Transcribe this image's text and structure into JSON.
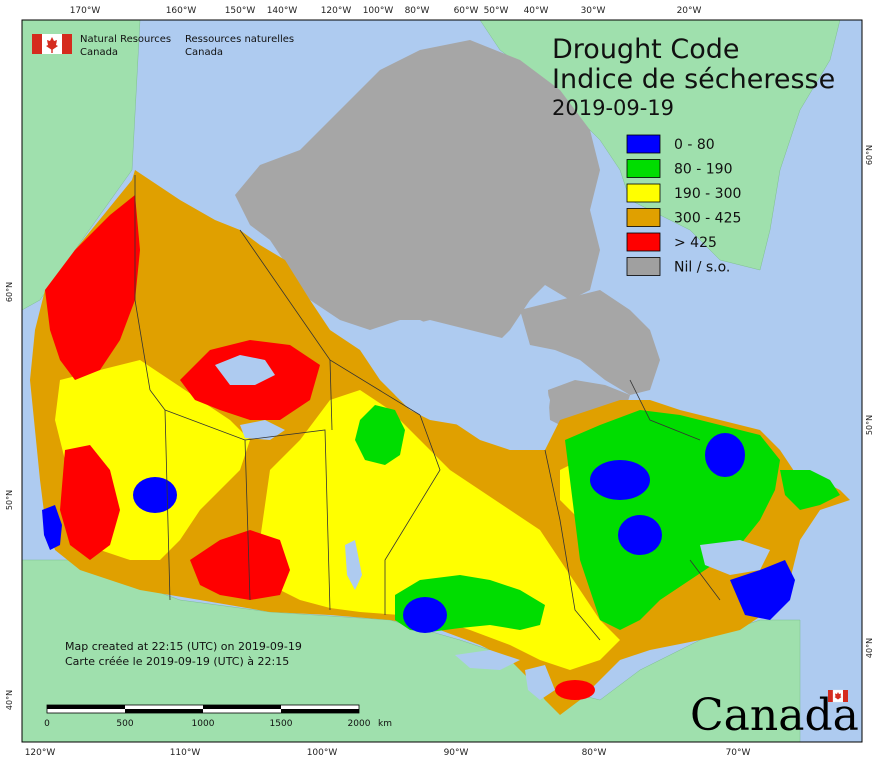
{
  "title": {
    "line1": "Drought Code",
    "line2": "Indice de sécheresse",
    "date": "2019-09-19"
  },
  "legend": [
    {
      "label": "0 - 80",
      "color": "#0000ff"
    },
    {
      "label": "80 - 190",
      "color": "#00dd00"
    },
    {
      "label": "190 - 300",
      "color": "#ffff00"
    },
    {
      "label": "300 - 425",
      "color": "#e0a000"
    },
    {
      "label": "> 425",
      "color": "#ff0000"
    },
    {
      "label": "Nil / s.o.",
      "color": "#a0a0a0"
    }
  ],
  "agency": {
    "en_line1": "Natural Resources",
    "en_line2": "Canada",
    "fr_line1": "Ressources naturelles",
    "fr_line2": "Canada"
  },
  "note": {
    "en": "Map created at 22:15 (UTC) on 2019-09-19",
    "fr": "Carte créée le 2019-09-19 (UTC) à 22:15"
  },
  "scale_bar": {
    "labels": [
      "0",
      "500",
      "1000",
      "1500",
      "2000"
    ],
    "unit": "km"
  },
  "wordmark": "Canada",
  "graticule": {
    "top": [
      "170°W",
      "160°W",
      "150°W",
      "140°W",
      "120°W",
      "100°W",
      "80°W",
      "60°W",
      "50°W",
      "40°W",
      "30°W",
      "20°W"
    ],
    "bottom": [
      "120°W",
      "110°W",
      "100°W",
      "90°W",
      "80°W",
      "70°W"
    ],
    "left": [
      "60°N",
      "50°N",
      "40°N"
    ],
    "right": [
      "60°N",
      "50°N",
      "40°N"
    ]
  },
  "colors": {
    "ocean": "#aecbf0",
    "land_other": "#9fe0ad",
    "nil": "#a6a6a6",
    "frame": "#000000"
  }
}
